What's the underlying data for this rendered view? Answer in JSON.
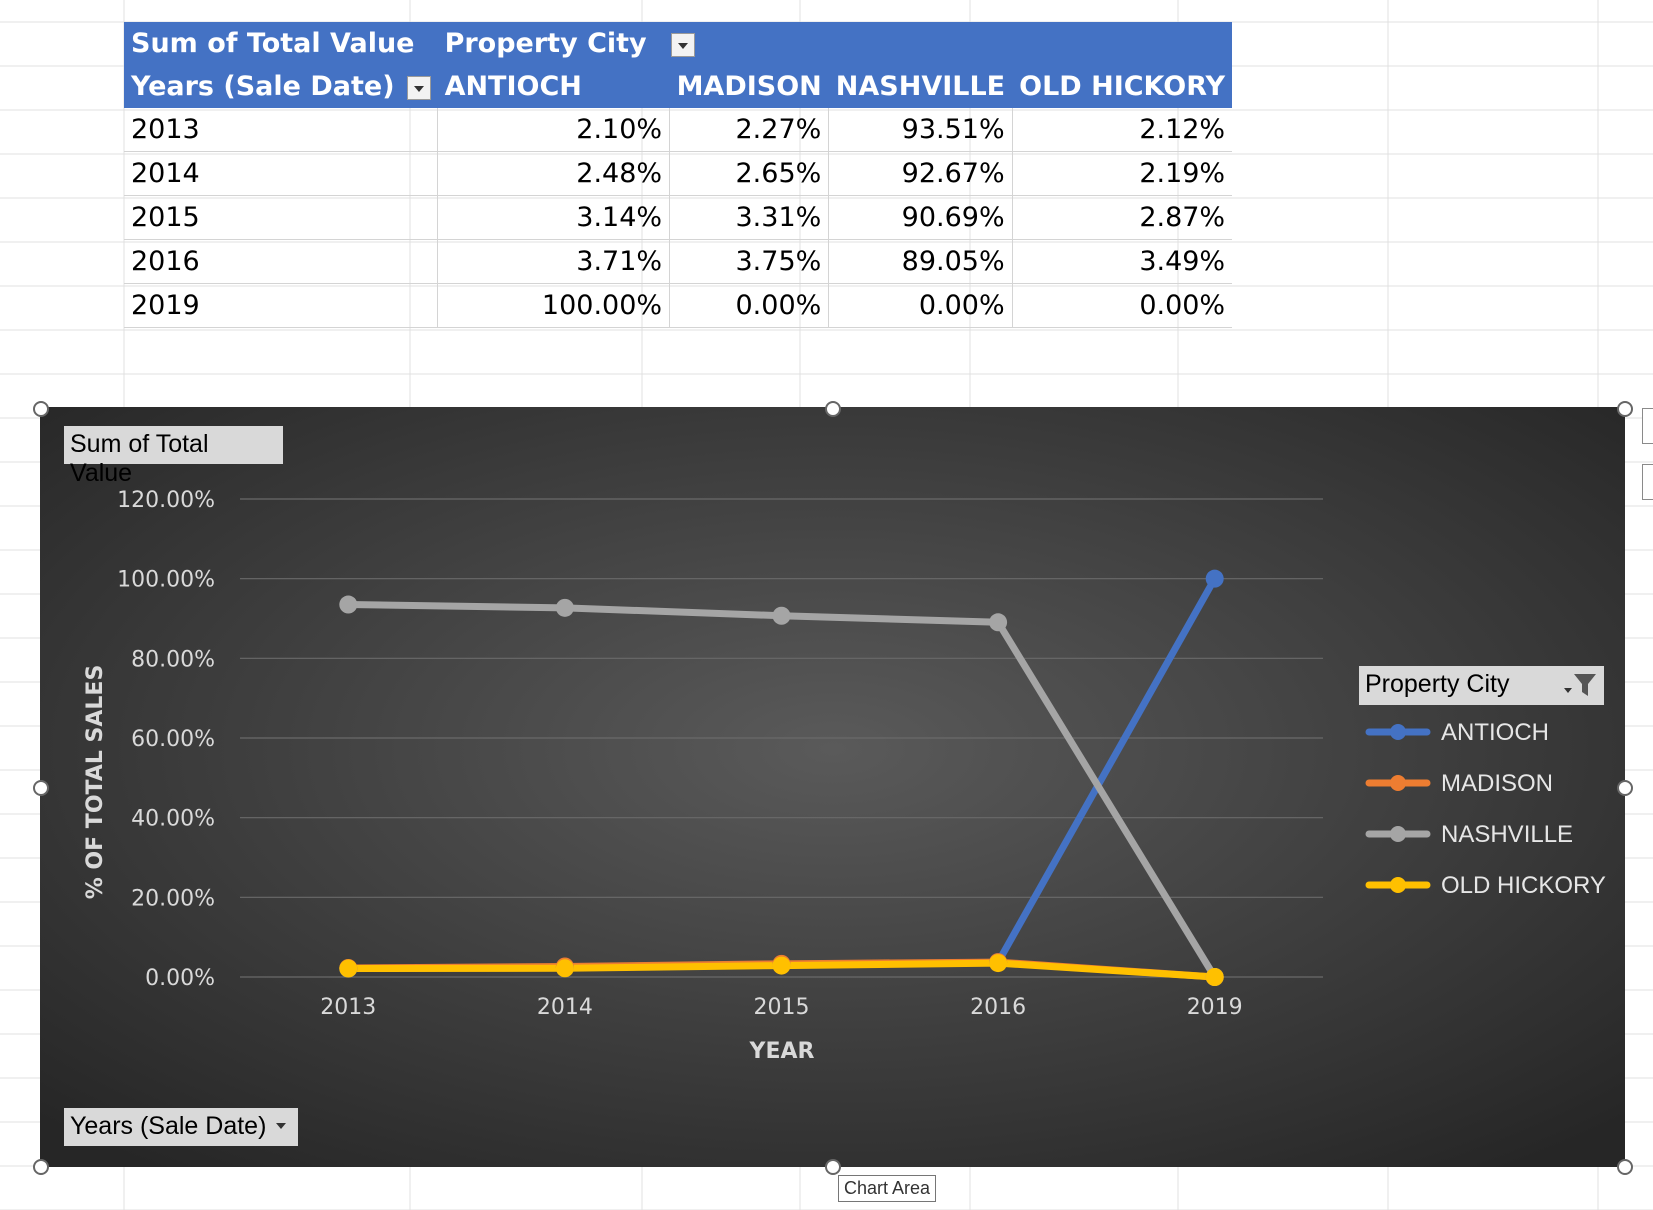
{
  "pivot": {
    "corner_label": "Sum of Total Value",
    "column_field_label": "Property City",
    "row_field_label": "Years (Sale Date)",
    "columns": [
      "ANTIOCH",
      "MADISON",
      "NASHVILLE",
      "OLD HICKORY"
    ],
    "rows": [
      {
        "year": "2013",
        "values": [
          "2.10%",
          "2.27%",
          "93.51%",
          "2.12%"
        ]
      },
      {
        "year": "2014",
        "values": [
          "2.48%",
          "2.65%",
          "92.67%",
          "2.19%"
        ]
      },
      {
        "year": "2015",
        "values": [
          "3.14%",
          "3.31%",
          "90.69%",
          "2.87%"
        ]
      },
      {
        "year": "2016",
        "values": [
          "3.71%",
          "3.75%",
          "89.05%",
          "3.49%"
        ]
      },
      {
        "year": "2019",
        "values": [
          "100.00%",
          "0.00%",
          "0.00%",
          "0.00%"
        ]
      }
    ]
  },
  "chart_buttons": {
    "value_field": "Sum of Total Value",
    "axis_field": "Years (Sale Date)",
    "legend_field": "Property City"
  },
  "tooltip": "Chart Area",
  "chart_data": {
    "type": "line",
    "title": "",
    "xlabel": "YEAR",
    "ylabel": "% OF TOTAL SALES",
    "categories": [
      "2013",
      "2014",
      "2015",
      "2016",
      "2019"
    ],
    "ylim": [
      0,
      120
    ],
    "yticks": [
      "0.00%",
      "20.00%",
      "40.00%",
      "60.00%",
      "80.00%",
      "100.00%",
      "120.00%"
    ],
    "grid": true,
    "legend_placement": "right",
    "series": [
      {
        "name": "ANTIOCH",
        "color": "#4472c4",
        "values": [
          2.1,
          2.48,
          3.14,
          3.71,
          100.0
        ]
      },
      {
        "name": "MADISON",
        "color": "#ed7d31",
        "values": [
          2.27,
          2.65,
          3.31,
          3.75,
          0.0
        ]
      },
      {
        "name": "NASHVILLE",
        "color": "#a5a5a5",
        "values": [
          93.51,
          92.67,
          90.69,
          89.05,
          0.0
        ]
      },
      {
        "name": "OLD HICKORY",
        "color": "#ffc000",
        "values": [
          2.12,
          2.19,
          2.87,
          3.49,
          0.0
        ]
      }
    ]
  }
}
